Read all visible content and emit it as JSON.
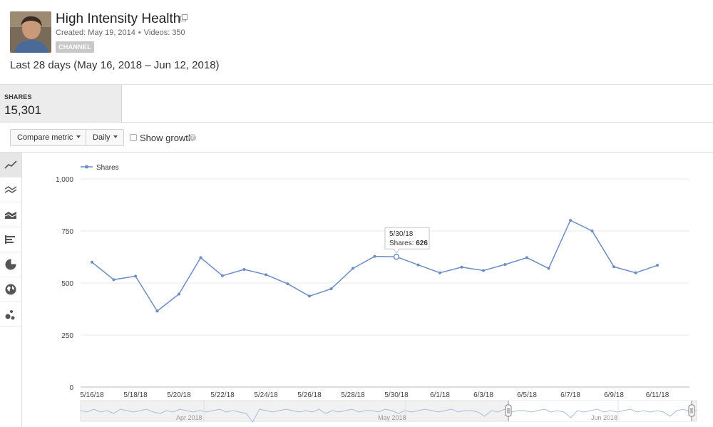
{
  "channel": {
    "title": "High Intensity Health",
    "created": "Created: May 19, 2014",
    "videos": "Videos: 350",
    "badge": "CHANNEL"
  },
  "date_range": "Last 28 days (May 16, 2018 – Jun 12, 2018)",
  "metric": {
    "label": "SHARES",
    "value": "15,301"
  },
  "toolbar": {
    "compare_metric": "Compare metric",
    "interval": "Daily",
    "show_growth": "Show growth",
    "help": "?"
  },
  "sidebar": {
    "icons": [
      "line-chart-icon",
      "multi-line-chart-icon",
      "area-chart-icon",
      "bar-chart-icon",
      "pie-chart-icon",
      "globe-map-icon",
      "bubble-chart-icon"
    ]
  },
  "tooltip": {
    "date": "5/30/18",
    "label": "Shares:",
    "value": "626"
  },
  "timeline": {
    "labels": [
      "Apr 2018",
      "May 2018",
      "Jun 2018"
    ]
  },
  "colors": {
    "series": "#6b8cc4",
    "grid": "#e9e9e9",
    "axis": "#999999"
  },
  "chart_data": {
    "type": "line",
    "legend": "top-left",
    "series": [
      {
        "name": "Shares",
        "x": [
          "5/16/18",
          "5/17/18",
          "5/18/18",
          "5/19/18",
          "5/20/18",
          "5/21/18",
          "5/22/18",
          "5/23/18",
          "5/24/18",
          "5/25/18",
          "5/26/18",
          "5/27/18",
          "5/28/18",
          "5/29/18",
          "5/30/18",
          "5/31/18",
          "6/1/18",
          "6/2/18",
          "6/3/18",
          "6/4/18",
          "6/5/18",
          "6/6/18",
          "6/7/18",
          "6/8/18",
          "6/9/18",
          "6/10/18",
          "6/11/18"
        ],
        "values": [
          600,
          516,
          533,
          365,
          447,
          622,
          535,
          565,
          540,
          496,
          437,
          472,
          570,
          628,
          626,
          587,
          549,
          576,
          560,
          589,
          622,
          570,
          801,
          750,
          578,
          549,
          585
        ]
      }
    ],
    "x_tick_labels": [
      "5/16/18",
      "5/18/18",
      "5/20/18",
      "5/22/18",
      "5/24/18",
      "5/26/18",
      "5/28/18",
      "5/30/18",
      "6/1/18",
      "6/3/18",
      "6/5/18",
      "6/7/18",
      "6/9/18",
      "6/11/18"
    ],
    "y_ticks": [
      "0",
      "250",
      "500",
      "750",
      "1,000"
    ],
    "y_tick_values": [
      0,
      250,
      500,
      750,
      1000
    ],
    "ylim": [
      0,
      1000
    ],
    "grid": true
  }
}
